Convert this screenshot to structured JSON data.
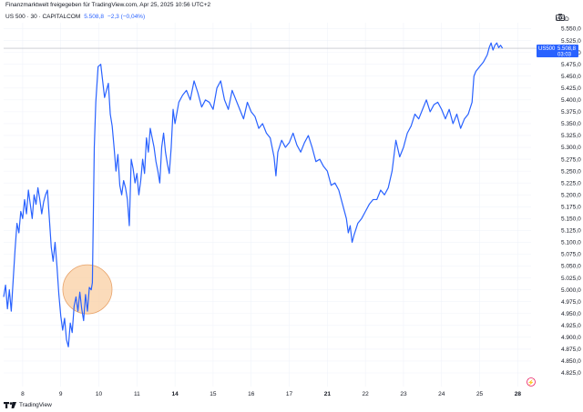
{
  "header": {
    "note": "Finanzmarktwelt freigegeben für TradingView.com, Apr 25, 2025 10:56 UTC+2",
    "symbol": "US 500 · 30 · CAPITALCOM",
    "last": "5.508,8",
    "change": "−2,3 (−0,04%)"
  },
  "axis": {
    "currency": "USD"
  },
  "price_tag": {
    "symbol": "US500",
    "value": "5.508,8",
    "countdown": "03:03"
  },
  "footer": {
    "brand": "TradingView"
  },
  "colors": {
    "line": "#2962ff",
    "highlight_fill": "#f9cfa3",
    "highlight_stroke": "#e8a36a",
    "price_tag": "#2962ff",
    "grid": "#f0f3fa"
  },
  "chart_data": {
    "type": "line",
    "title": "",
    "xlabel": "",
    "ylabel": "",
    "ylim": [
      4825,
      5562.5
    ],
    "y_ticks": [
      "5.550,0",
      "5.525,0",
      "5.500,0",
      "5.475,0",
      "5.450,0",
      "5.425,0",
      "5.400,0",
      "5.375,0",
      "5.350,0",
      "5.325,0",
      "5.300,0",
      "5.275,0",
      "5.250,0",
      "5.225,0",
      "5.200,0",
      "5.175,0",
      "5.150,0",
      "5.125,0",
      "5.100,0",
      "5.075,0",
      "5.050,0",
      "5.025,0",
      "5.000,0",
      "4.975,0",
      "4.950,0",
      "4.925,0",
      "4.900,0",
      "4.875,0",
      "4.850,0",
      "4.825,0"
    ],
    "x_ticks": [
      {
        "label": "8",
        "x": 0.5,
        "bold": false
      },
      {
        "label": "9",
        "x": 1.5,
        "bold": false
      },
      {
        "label": "10",
        "x": 2.5,
        "bold": false
      },
      {
        "label": "11",
        "x": 3.5,
        "bold": false
      },
      {
        "label": "14",
        "x": 4.5,
        "bold": true
      },
      {
        "label": "15",
        "x": 5.5,
        "bold": false
      },
      {
        "label": "16",
        "x": 6.5,
        "bold": false
      },
      {
        "label": "17",
        "x": 7.5,
        "bold": false
      },
      {
        "label": "21",
        "x": 8.5,
        "bold": true
      },
      {
        "label": "22",
        "x": 9.5,
        "bold": false
      },
      {
        "label": "23",
        "x": 10.5,
        "bold": false
      },
      {
        "label": "24",
        "x": 11.5,
        "bold": false
      },
      {
        "label": "25",
        "x": 12.5,
        "bold": false
      },
      {
        "label": "28",
        "x": 13.5,
        "bold": true
      }
    ],
    "x_range": [
      0,
      13.85
    ],
    "last_value": 5508.8,
    "series": [
      {
        "name": "",
        "points": [
          [
            0.0,
            4985
          ],
          [
            0.05,
            5010
          ],
          [
            0.1,
            4960
          ],
          [
            0.15,
            5000
          ],
          [
            0.2,
            4955
          ],
          [
            0.25,
            5020
          ],
          [
            0.3,
            5085
          ],
          [
            0.35,
            5140
          ],
          [
            0.4,
            5120
          ],
          [
            0.45,
            5165
          ],
          [
            0.5,
            5150
          ],
          [
            0.55,
            5190
          ],
          [
            0.6,
            5160
          ],
          [
            0.65,
            5210
          ],
          [
            0.7,
            5180
          ],
          [
            0.75,
            5150
          ],
          [
            0.8,
            5200
          ],
          [
            0.85,
            5180
          ],
          [
            0.9,
            5215
          ],
          [
            0.95,
            5190
          ],
          [
            1.0,
            5160
          ],
          [
            1.05,
            5185
          ],
          [
            1.1,
            5200
          ],
          [
            1.15,
            5210
          ],
          [
            1.2,
            5150
          ],
          [
            1.25,
            5090
          ],
          [
            1.3,
            5060
          ],
          [
            1.35,
            5100
          ],
          [
            1.4,
            5050
          ],
          [
            1.45,
            4990
          ],
          [
            1.5,
            4945
          ],
          [
            1.55,
            4915
          ],
          [
            1.6,
            4940
          ],
          [
            1.65,
            4895
          ],
          [
            1.7,
            4880
          ],
          [
            1.75,
            4930
          ],
          [
            1.8,
            4910
          ],
          [
            1.85,
            4965
          ],
          [
            1.9,
            4985
          ],
          [
            1.95,
            4955
          ],
          [
            2.0,
            4995
          ],
          [
            2.05,
            4960
          ],
          [
            2.1,
            4935
          ],
          [
            2.15,
            4990
          ],
          [
            2.2,
            4955
          ],
          [
            2.25,
            5005
          ],
          [
            2.3,
            5000
          ],
          [
            2.33,
            5015
          ],
          [
            2.38,
            5300
          ],
          [
            2.42,
            5395
          ],
          [
            2.48,
            5470
          ],
          [
            2.55,
            5475
          ],
          [
            2.6,
            5440
          ],
          [
            2.65,
            5405
          ],
          [
            2.7,
            5420
          ],
          [
            2.75,
            5435
          ],
          [
            2.8,
            5370
          ],
          [
            2.85,
            5345
          ],
          [
            2.9,
            5300
          ],
          [
            2.95,
            5250
          ],
          [
            3.0,
            5285
          ],
          [
            3.05,
            5220
          ],
          [
            3.1,
            5200
          ],
          [
            3.15,
            5230
          ],
          [
            3.2,
            5215
          ],
          [
            3.25,
            5190
          ],
          [
            3.3,
            5135
          ],
          [
            3.35,
            5275
          ],
          [
            3.4,
            5255
          ],
          [
            3.45,
            5225
          ],
          [
            3.5,
            5245
          ],
          [
            3.55,
            5200
          ],
          [
            3.6,
            5230
          ],
          [
            3.65,
            5275
          ],
          [
            3.7,
            5245
          ],
          [
            3.75,
            5320
          ],
          [
            3.8,
            5290
          ],
          [
            3.85,
            5340
          ],
          [
            3.9,
            5320
          ],
          [
            3.95,
            5300
          ],
          [
            4.0,
            5270
          ],
          [
            4.05,
            5250
          ],
          [
            4.1,
            5225
          ],
          [
            4.15,
            5300
          ],
          [
            4.2,
            5330
          ],
          [
            4.25,
            5290
          ],
          [
            4.3,
            5265
          ],
          [
            4.35,
            5245
          ],
          [
            4.4,
            5300
          ],
          [
            4.45,
            5380
          ],
          [
            4.5,
            5350
          ],
          [
            4.6,
            5395
          ],
          [
            4.7,
            5410
          ],
          [
            4.8,
            5420
          ],
          [
            4.9,
            5400
          ],
          [
            5.0,
            5440
          ],
          [
            5.1,
            5415
          ],
          [
            5.2,
            5385
          ],
          [
            5.3,
            5400
          ],
          [
            5.4,
            5395
          ],
          [
            5.5,
            5380
          ],
          [
            5.6,
            5425
          ],
          [
            5.7,
            5440
          ],
          [
            5.8,
            5400
          ],
          [
            5.9,
            5380
          ],
          [
            6.0,
            5420
          ],
          [
            6.1,
            5400
          ],
          [
            6.2,
            5380
          ],
          [
            6.3,
            5360
          ],
          [
            6.4,
            5395
          ],
          [
            6.5,
            5375
          ],
          [
            6.6,
            5365
          ],
          [
            6.7,
            5340
          ],
          [
            6.8,
            5350
          ],
          [
            6.9,
            5330
          ],
          [
            7.0,
            5320
          ],
          [
            7.1,
            5280
          ],
          [
            7.15,
            5240
          ],
          [
            7.2,
            5290
          ],
          [
            7.3,
            5315
          ],
          [
            7.4,
            5300
          ],
          [
            7.5,
            5310
          ],
          [
            7.6,
            5330
          ],
          [
            7.7,
            5305
          ],
          [
            7.8,
            5290
          ],
          [
            7.9,
            5310
          ],
          [
            8.0,
            5325
          ],
          [
            8.1,
            5300
          ],
          [
            8.2,
            5270
          ],
          [
            8.3,
            5275
          ],
          [
            8.4,
            5260
          ],
          [
            8.5,
            5250
          ],
          [
            8.6,
            5220
          ],
          [
            8.7,
            5225
          ],
          [
            8.8,
            5210
          ],
          [
            8.9,
            5180
          ],
          [
            9.0,
            5150
          ],
          [
            9.05,
            5120
          ],
          [
            9.1,
            5135
          ],
          [
            9.15,
            5100
          ],
          [
            9.2,
            5115
          ],
          [
            9.3,
            5140
          ],
          [
            9.4,
            5150
          ],
          [
            9.5,
            5165
          ],
          [
            9.6,
            5180
          ],
          [
            9.7,
            5190
          ],
          [
            9.8,
            5190
          ],
          [
            9.9,
            5210
          ],
          [
            10.0,
            5200
          ],
          [
            10.1,
            5215
          ],
          [
            10.2,
            5250
          ],
          [
            10.3,
            5315
          ],
          [
            10.4,
            5280
          ],
          [
            10.5,
            5300
          ],
          [
            10.6,
            5330
          ],
          [
            10.7,
            5345
          ],
          [
            10.8,
            5370
          ],
          [
            10.9,
            5360
          ],
          [
            11.0,
            5380
          ],
          [
            11.1,
            5400
          ],
          [
            11.2,
            5375
          ],
          [
            11.3,
            5390
          ],
          [
            11.4,
            5395
          ],
          [
            11.5,
            5380
          ],
          [
            11.6,
            5360
          ],
          [
            11.7,
            5380
          ],
          [
            11.8,
            5350
          ],
          [
            11.9,
            5370
          ],
          [
            12.0,
            5340
          ],
          [
            12.1,
            5360
          ],
          [
            12.2,
            5370
          ],
          [
            12.3,
            5395
          ],
          [
            12.35,
            5450
          ],
          [
            12.4,
            5460
          ],
          [
            12.5,
            5470
          ],
          [
            12.6,
            5480
          ],
          [
            12.7,
            5495
          ],
          [
            12.75,
            5510
          ],
          [
            12.8,
            5520
          ],
          [
            12.85,
            5505
          ],
          [
            12.9,
            5515
          ],
          [
            12.95,
            5520
          ],
          [
            13.0,
            5510
          ],
          [
            13.05,
            5515
          ],
          [
            13.1,
            5508.8
          ]
        ]
      }
    ],
    "highlight": {
      "shape": "circle",
      "center_x": 2.2,
      "center_y": 5001
    }
  }
}
